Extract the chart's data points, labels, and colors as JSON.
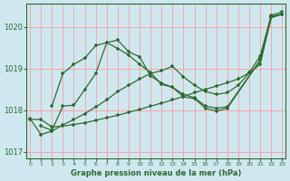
{
  "xlabel": "Graphe pression niveau de la mer (hPa)",
  "bg_color": "#cfe8f0",
  "grid_color": "#ff9999",
  "line_color": "#2d6a2d",
  "ylim": [
    1016.85,
    1020.55
  ],
  "xlim": [
    -0.3,
    23.3
  ],
  "yticks": [
    1017,
    1018,
    1019,
    1020
  ],
  "xticks": [
    0,
    1,
    2,
    3,
    4,
    5,
    6,
    7,
    8,
    9,
    10,
    11,
    12,
    13,
    14,
    15,
    16,
    17,
    18,
    19,
    20,
    21,
    22,
    23
  ],
  "series": [
    {
      "x": [
        0,
        1,
        2,
        3,
        4,
        5,
        6,
        7,
        8,
        9,
        10,
        11,
        12,
        13,
        14,
        15,
        16,
        17,
        18,
        19,
        20,
        21,
        22,
        23
      ],
      "y": [
        1017.78,
        1017.78,
        1017.6,
        1017.62,
        1017.66,
        1017.7,
        1017.76,
        1017.82,
        1017.88,
        1017.95,
        1018.02,
        1018.1,
        1018.17,
        1018.25,
        1018.33,
        1018.42,
        1018.5,
        1018.58,
        1018.66,
        1018.75,
        1018.9,
        1019.1,
        1020.25,
        1020.3
      ]
    },
    {
      "x": [
        0,
        1,
        2,
        3,
        4,
        5,
        6,
        7,
        8,
        9,
        10,
        11,
        12,
        13,
        14,
        15,
        16,
        17,
        18,
        19,
        20,
        21,
        22,
        23
      ],
      "y": [
        1017.8,
        1017.42,
        1017.5,
        1017.65,
        1017.78,
        1017.92,
        1018.08,
        1018.25,
        1018.45,
        1018.6,
        1018.75,
        1018.88,
        1018.95,
        1019.05,
        1018.8,
        1018.6,
        1018.45,
        1018.38,
        1018.42,
        1018.6,
        1018.9,
        1019.3,
        1020.28,
        1020.35
      ]
    },
    {
      "x": [
        1,
        2,
        3,
        4,
        5,
        6,
        7,
        8,
        9,
        10,
        11,
        12,
        13,
        14,
        15,
        16,
        17,
        18,
        21,
        22,
        23
      ],
      "y": [
        1017.62,
        1017.52,
        1018.1,
        1018.12,
        1018.5,
        1018.88,
        1019.62,
        1019.68,
        1019.4,
        1019.28,
        1018.82,
        1018.65,
        1018.55,
        1018.32,
        1018.28,
        1018.05,
        1017.98,
        1018.05,
        1019.2,
        1020.22,
        1020.3
      ]
    },
    {
      "x": [
        2,
        3,
        4,
        5,
        6,
        7,
        8,
        9,
        10,
        11,
        12,
        13,
        14,
        15,
        16,
        17,
        18,
        21,
        22,
        23
      ],
      "y": [
        1018.1,
        1018.88,
        1019.1,
        1019.25,
        1019.55,
        1019.62,
        1019.48,
        1019.32,
        1019.1,
        1018.9,
        1018.62,
        1018.55,
        1018.38,
        1018.3,
        1018.1,
        1018.05,
        1018.08,
        1019.2,
        1020.22,
        1020.3
      ]
    }
  ]
}
